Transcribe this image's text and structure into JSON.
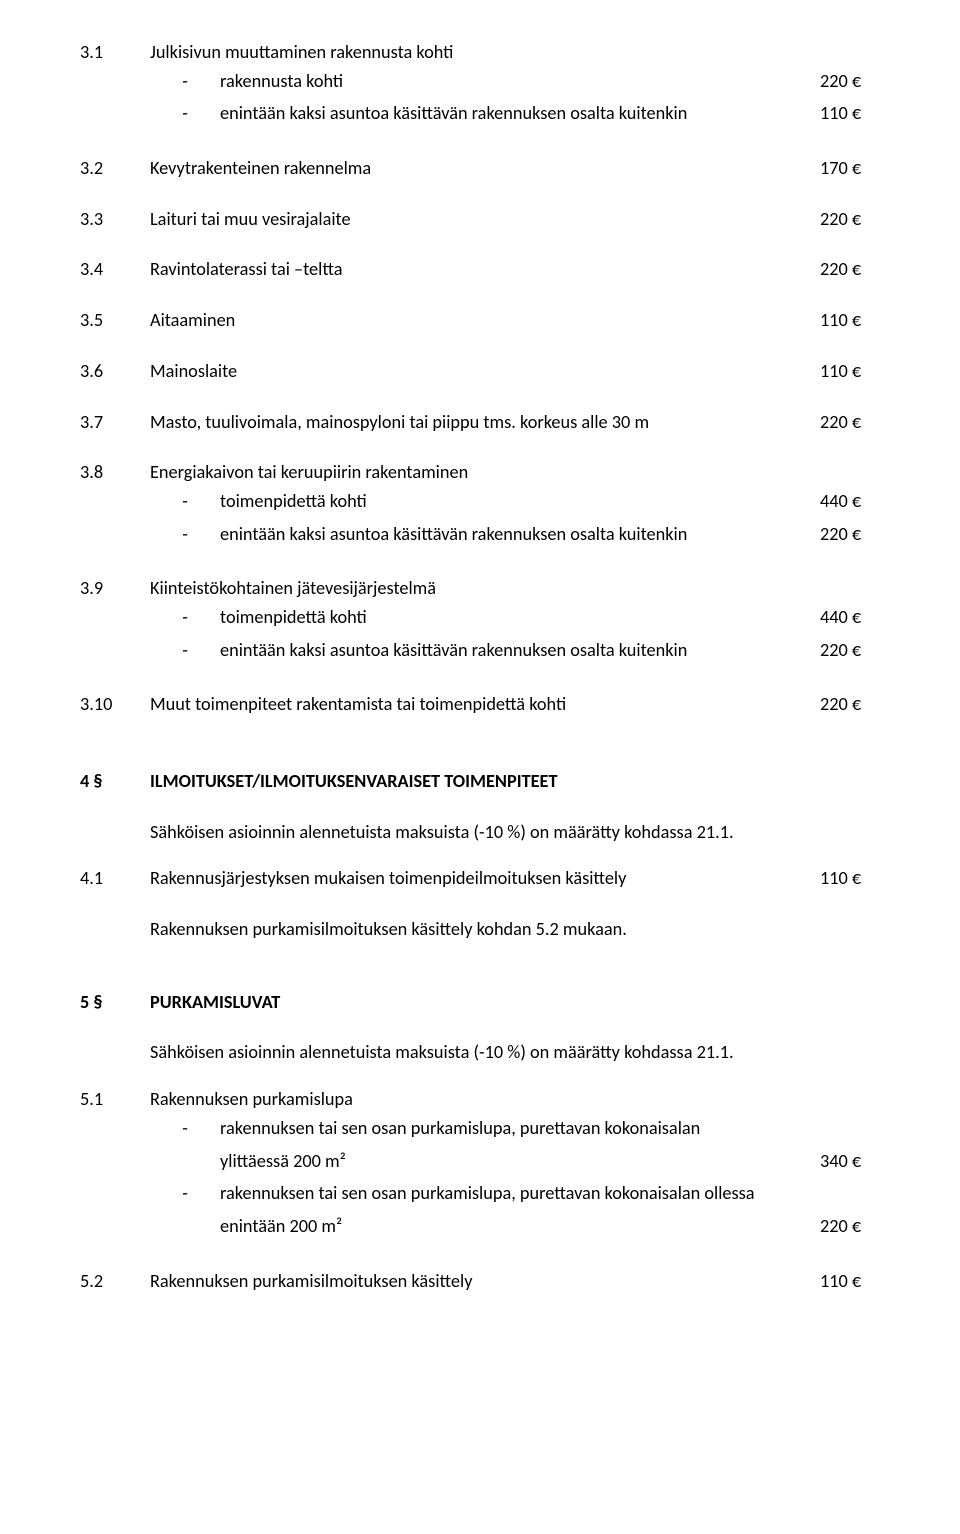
{
  "s3_1": {
    "num": "3.1",
    "title": "Julkisivun muuttaminen rakennusta kohti",
    "items": [
      {
        "dash": "-",
        "text": "rakennusta kohti",
        "price": "220 €"
      },
      {
        "dash": "-",
        "text": "enintään kaksi asuntoa käsittävän rakennuksen osalta kuitenkin",
        "price": "110 €"
      }
    ]
  },
  "s3_2": {
    "num": "3.2",
    "text": "Kevytrakenteinen rakennelma",
    "price": "170 €"
  },
  "s3_3": {
    "num": "3.3",
    "text": "Laituri tai muu vesirajalaite",
    "price": "220 €"
  },
  "s3_4": {
    "num": "3.4",
    "text": "Ravintolaterassi tai –teltta",
    "price": "220 €"
  },
  "s3_5": {
    "num": "3.5",
    "text": "Aitaaminen",
    "price": "110 €"
  },
  "s3_6": {
    "num": "3.6",
    "text": "Mainoslaite",
    "price": "110 €"
  },
  "s3_7": {
    "num": "3.7",
    "text": "Masto, tuulivoimala, mainospyloni tai piippu tms. korkeus alle 30 m",
    "price": "220 €"
  },
  "s3_8": {
    "num": "3.8",
    "title": "Energiakaivon tai keruupiirin rakentaminen",
    "items": [
      {
        "dash": "-",
        "text": "toimenpidettä kohti",
        "price": "440 €"
      },
      {
        "dash": "-",
        "text": "enintään kaksi asuntoa käsittävän rakennuksen osalta kuitenkin",
        "price": "220 €"
      }
    ]
  },
  "s3_9": {
    "num": "3.9",
    "title": "Kiinteistökohtainen jätevesijärjestelmä",
    "items": [
      {
        "dash": "-",
        "text": "toimenpidettä kohti",
        "price": "440 €"
      },
      {
        "dash": "-",
        "text": "enintään kaksi asuntoa käsittävän rakennuksen osalta kuitenkin",
        "price": "220 €"
      }
    ]
  },
  "s3_10": {
    "num": "3.10",
    "text": "Muut toimenpiteet rakentamista tai toimenpidettä kohti",
    "price": "220 €"
  },
  "s4": {
    "num": "4 §",
    "title": "ILMOITUKSET/ILMOITUKSENVARAISET TOIMENPITEET",
    "intro": "Sähköisen asioinnin alennetuista maksuista (-10 %) on määrätty kohdassa 21.1.",
    "s4_1": {
      "num": "4.1",
      "text": "Rakennusjärjestyksen mukaisen toimenpideilmoituksen käsittely",
      "price": "110 €"
    },
    "note": "Rakennuksen purkamisilmoituksen käsittely kohdan 5.2 mukaan."
  },
  "s5": {
    "num": "5 §",
    "title": "PURKAMISLUVAT",
    "intro": "Sähköisen asioinnin alennetuista maksuista (-10 %) on määrätty kohdassa 21.1.",
    "s5_1": {
      "num": "5.1",
      "title": "Rakennuksen purkamislupa",
      "items": [
        {
          "dash": "-",
          "pre": "rakennuksen tai sen osan purkamislupa, purettavan kokonaisalan",
          "mid": "ylittäessä 200 m²",
          "price": "340 €"
        },
        {
          "dash": "-",
          "pre": "rakennuksen tai sen osan purkamislupa, purettavan kokonaisalan ollessa",
          "mid": "enintään 200 m²",
          "price": "220 €"
        }
      ]
    },
    "s5_2": {
      "num": "5.2",
      "text": "Rakennuksen purkamisilmoituksen käsittely",
      "price": "110 €"
    }
  }
}
